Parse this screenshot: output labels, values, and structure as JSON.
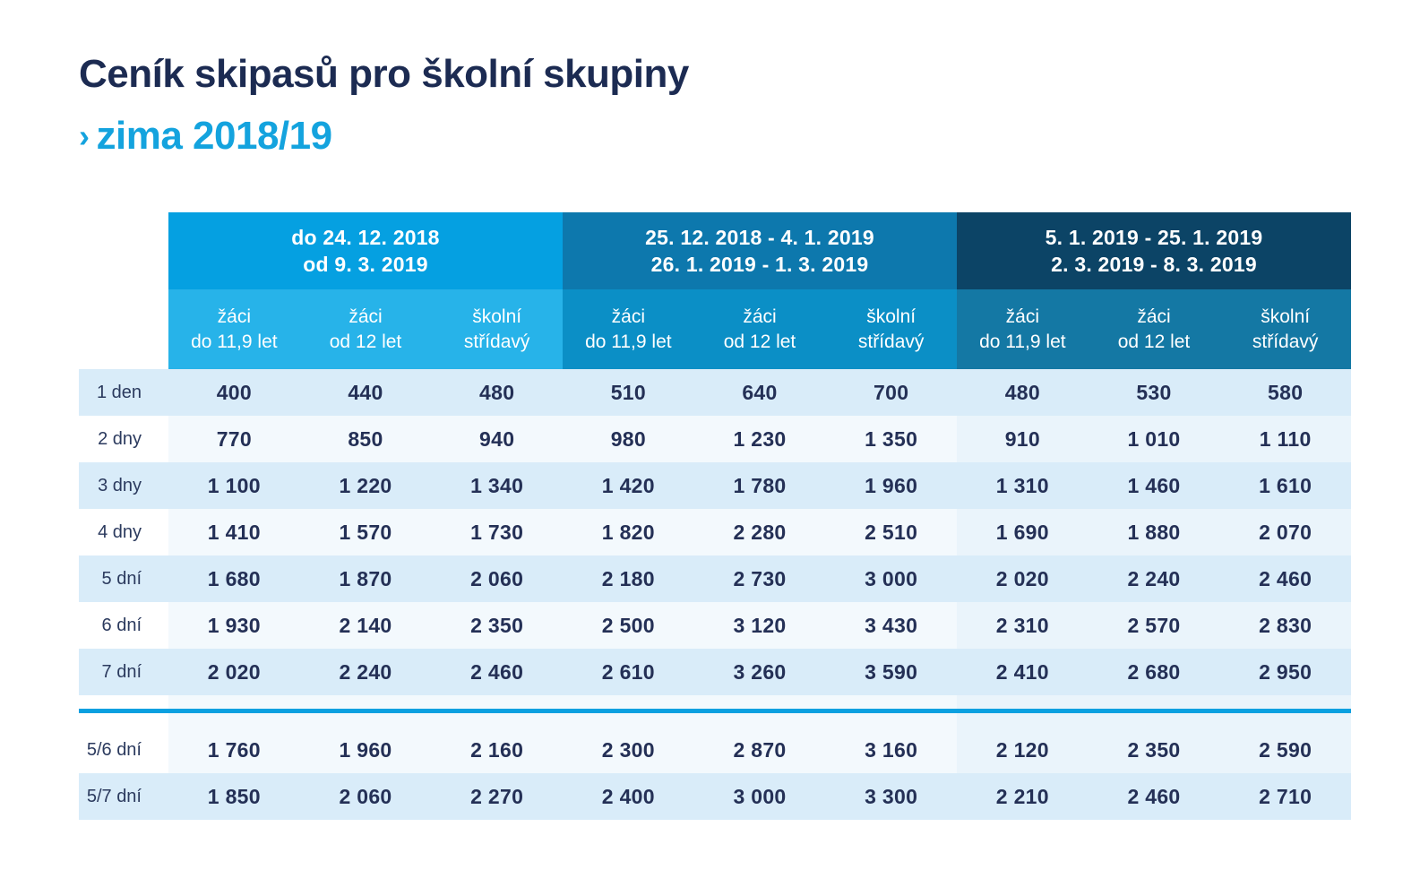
{
  "page": {
    "title": "Ceník skipasů pro školní skupiny",
    "subtitle_arrow": "›",
    "subtitle": "zima 2018/19"
  },
  "colors": {
    "title_navy": "#1c2b52",
    "accent_cyan": "#14a3de",
    "season1_header": "#05a0e1",
    "season1_subheader": "#27b3e9",
    "season2_header": "#0d78ad",
    "season2_subheader": "#0b8fc6",
    "season3_header": "#0c4466",
    "season3_subheader": "#1478a4",
    "row_odd": "#d9ecf9",
    "row_even": "#f3f9fd",
    "row_even_season3": "#eaf4fb",
    "divider": "#0aa0e0",
    "value_text": "#243056",
    "label_text": "#2b3a5e"
  },
  "table": {
    "season_groups": [
      {
        "label_line1": "do 24. 12. 2018",
        "label_line2": "od 9. 3. 2019"
      },
      {
        "label_line1": "25. 12. 2018 - 4. 1. 2019",
        "label_line2": "26. 1. 2019 - 1. 3. 2019"
      },
      {
        "label_line1": "5. 1. 2019 - 25. 1. 2019",
        "label_line2": "2. 3. 2019 - 8. 3. 2019"
      }
    ],
    "subcolumns": [
      {
        "line1": "žáci",
        "line2": "do 11,9 let"
      },
      {
        "line1": "žáci",
        "line2": "od 12 let"
      },
      {
        "line1": "školní",
        "line2": "střídavý"
      }
    ],
    "rows": [
      {
        "label": "1 den",
        "values": [
          "400",
          "440",
          "480",
          "510",
          "640",
          "700",
          "480",
          "530",
          "580"
        ]
      },
      {
        "label": "2 dny",
        "values": [
          "770",
          "850",
          "940",
          "980",
          "1 230",
          "1 350",
          "910",
          "1 010",
          "1 110"
        ]
      },
      {
        "label": "3 dny",
        "values": [
          "1 100",
          "1 220",
          "1 340",
          "1 420",
          "1 780",
          "1 960",
          "1 310",
          "1 460",
          "1 610"
        ]
      },
      {
        "label": "4 dny",
        "values": [
          "1 410",
          "1 570",
          "1 730",
          "1 820",
          "2 280",
          "2 510",
          "1 690",
          "1 880",
          "2 070"
        ]
      },
      {
        "label": "5 dní",
        "values": [
          "1 680",
          "1 870",
          "2 060",
          "2 180",
          "2 730",
          "3 000",
          "2 020",
          "2 240",
          "2 460"
        ]
      },
      {
        "label": "6 dní",
        "values": [
          "1 930",
          "2 140",
          "2 350",
          "2 500",
          "3 120",
          "3 430",
          "2 310",
          "2 570",
          "2 830"
        ]
      },
      {
        "label": "7 dní",
        "values": [
          "2 020",
          "2 240",
          "2 460",
          "2 610",
          "3 260",
          "3 590",
          "2 410",
          "2 680",
          "2 950"
        ]
      }
    ],
    "combo_rows": [
      {
        "label": "5/6 dní",
        "values": [
          "1 760",
          "1 960",
          "2 160",
          "2 300",
          "2 870",
          "3 160",
          "2 120",
          "2 350",
          "2 590"
        ]
      },
      {
        "label": "5/7 dní",
        "values": [
          "1 850",
          "2 060",
          "2 270",
          "2 400",
          "3 000",
          "3 300",
          "2 210",
          "2 460",
          "2 710"
        ]
      }
    ]
  }
}
